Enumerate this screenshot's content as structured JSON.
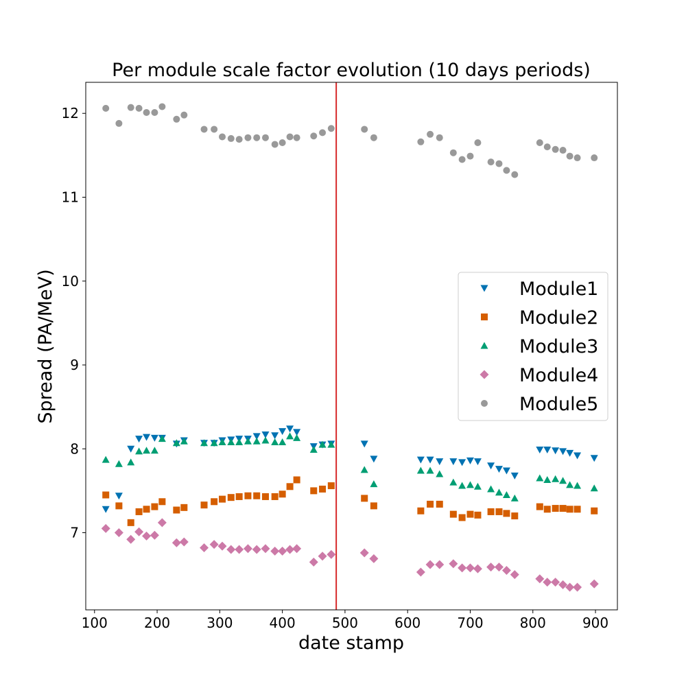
{
  "chart_data": {
    "type": "scatter",
    "title": "Per module scale factor evolution (10 days periods)",
    "xlabel": "date stamp",
    "ylabel": "Spread (PA/MeV)",
    "xlim": [
      86,
      935
    ],
    "ylim": [
      6.08,
      12.37
    ],
    "xticks": [
      100,
      200,
      300,
      400,
      500,
      600,
      700,
      800,
      900
    ],
    "yticks": [
      7,
      8,
      9,
      10,
      11,
      12
    ],
    "vline": {
      "x": 486,
      "color": "#d62728"
    },
    "legend_position": "center-right",
    "x": [
      118,
      139,
      158,
      171,
      183,
      196,
      208,
      231,
      243,
      275,
      291,
      304,
      318,
      331,
      345,
      359,
      373,
      388,
      400,
      412,
      423,
      450,
      464,
      478,
      531,
      546,
      621,
      636,
      651,
      673,
      687,
      700,
      712,
      733,
      746,
      758,
      771,
      811,
      823,
      836,
      848,
      859,
      871,
      898
    ],
    "series": [
      {
        "name": "Module1",
        "marker": "triangle-down",
        "color": "#0072b2",
        "values": [
          7.28,
          7.44,
          8.0,
          8.12,
          8.14,
          8.13,
          8.13,
          8.06,
          8.1,
          8.07,
          8.07,
          8.1,
          8.11,
          8.12,
          8.12,
          8.15,
          8.17,
          8.16,
          8.21,
          8.24,
          8.2,
          8.03,
          8.05,
          8.06,
          8.06,
          7.88,
          7.87,
          7.87,
          7.85,
          7.85,
          7.84,
          7.86,
          7.85,
          7.8,
          7.76,
          7.74,
          7.68,
          7.99,
          7.99,
          7.98,
          7.97,
          7.95,
          7.92,
          7.89
        ]
      },
      {
        "name": "Module2",
        "marker": "square",
        "color": "#d55e00",
        "values": [
          7.45,
          7.32,
          7.12,
          7.25,
          7.28,
          7.31,
          7.37,
          7.27,
          7.3,
          7.33,
          7.37,
          7.4,
          7.42,
          7.43,
          7.44,
          7.44,
          7.43,
          7.43,
          7.46,
          7.55,
          7.63,
          7.5,
          7.52,
          7.56,
          7.41,
          7.32,
          7.26,
          7.34,
          7.34,
          7.22,
          7.18,
          7.22,
          7.21,
          7.25,
          7.25,
          7.23,
          7.2,
          7.31,
          7.28,
          7.29,
          7.29,
          7.28,
          7.28,
          7.26
        ]
      },
      {
        "name": "Module3",
        "marker": "triangle-up",
        "color": "#009e73",
        "values": [
          7.87,
          7.82,
          7.84,
          7.97,
          7.98,
          7.98,
          8.12,
          8.07,
          8.09,
          8.07,
          8.07,
          8.08,
          8.08,
          8.08,
          8.09,
          8.09,
          8.1,
          8.08,
          8.08,
          8.15,
          8.13,
          7.99,
          8.05,
          8.05,
          7.75,
          7.58,
          7.74,
          7.74,
          7.7,
          7.6,
          7.56,
          7.57,
          7.55,
          7.52,
          7.48,
          7.45,
          7.41,
          7.65,
          7.63,
          7.64,
          7.62,
          7.57,
          7.56,
          7.53
        ]
      },
      {
        "name": "Module4",
        "marker": "diamond",
        "color": "#cc79a7",
        "values": [
          7.05,
          7.0,
          6.92,
          7.01,
          6.96,
          6.97,
          7.12,
          6.88,
          6.89,
          6.82,
          6.86,
          6.84,
          6.8,
          6.8,
          6.81,
          6.8,
          6.81,
          6.78,
          6.78,
          6.8,
          6.81,
          6.65,
          6.72,
          6.74,
          6.76,
          6.69,
          6.53,
          6.62,
          6.62,
          6.63,
          6.58,
          6.58,
          6.57,
          6.59,
          6.59,
          6.55,
          6.5,
          6.45,
          6.41,
          6.41,
          6.38,
          6.35,
          6.35,
          6.39
        ]
      },
      {
        "name": "Module5",
        "marker": "circle",
        "color": "#999999",
        "values": [
          12.06,
          11.88,
          12.07,
          12.06,
          12.01,
          12.01,
          12.08,
          11.93,
          11.98,
          11.81,
          11.81,
          11.72,
          11.7,
          11.69,
          11.71,
          11.71,
          11.71,
          11.63,
          11.65,
          11.72,
          11.71,
          11.73,
          11.77,
          11.82,
          11.81,
          11.71,
          11.66,
          11.75,
          11.71,
          11.53,
          11.45,
          11.49,
          11.65,
          11.42,
          11.4,
          11.32,
          11.27,
          11.65,
          11.6,
          11.57,
          11.56,
          11.49,
          11.47,
          11.47
        ]
      }
    ]
  }
}
